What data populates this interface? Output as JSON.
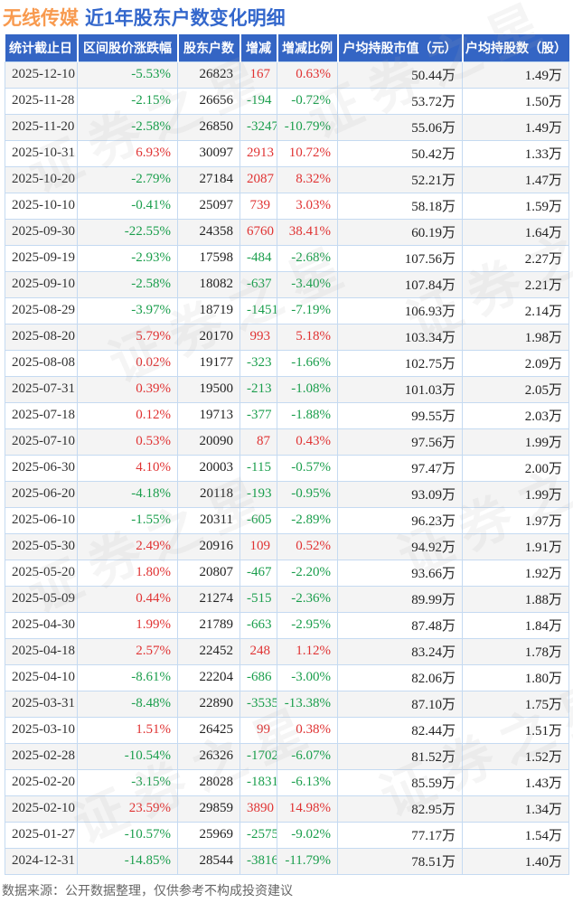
{
  "title": {
    "stock": "无线传媒",
    "text": "近1年股东户数变化明细"
  },
  "colors": {
    "header-bg": "#3465c4",
    "positive": "#e03333",
    "negative": "#1a9e4c",
    "title-stock": "#f89a4f",
    "title-rest": "#3367cc"
  },
  "watermark": {
    "text": "证券之星"
  },
  "chart_data": {
    "type": "table",
    "title": "无线传媒 近1年股东户数变化明细",
    "columns": [
      "统计截止日",
      "区间股价涨跌幅",
      "股东户数",
      "增减",
      "增减比例",
      "户均持股市值（元）",
      "户均持股数（股）"
    ],
    "column_keys": [
      "stat-date",
      "interval-price-change",
      "holder-count",
      "change",
      "change-ratio",
      "avg-holding-value",
      "avg-holding-shares"
    ],
    "rows": [
      [
        "2025-12-10",
        "-5.53%",
        "26823",
        "167",
        "0.63%",
        "50.44万",
        "1.49万"
      ],
      [
        "2025-11-28",
        "-2.15%",
        "26656",
        "-194",
        "-0.72%",
        "53.72万",
        "1.50万"
      ],
      [
        "2025-11-20",
        "-2.58%",
        "26850",
        "-3247",
        "-10.79%",
        "55.06万",
        "1.49万"
      ],
      [
        "2025-10-31",
        "6.93%",
        "30097",
        "2913",
        "10.72%",
        "50.42万",
        "1.33万"
      ],
      [
        "2025-10-20",
        "-2.79%",
        "27184",
        "2087",
        "8.32%",
        "52.21万",
        "1.47万"
      ],
      [
        "2025-10-10",
        "-0.41%",
        "25097",
        "739",
        "3.03%",
        "58.18万",
        "1.59万"
      ],
      [
        "2025-09-30",
        "-22.55%",
        "24358",
        "6760",
        "38.41%",
        "60.19万",
        "1.64万"
      ],
      [
        "2025-09-19",
        "-2.93%",
        "17598",
        "-484",
        "-2.68%",
        "107.56万",
        "2.27万"
      ],
      [
        "2025-09-10",
        "-2.58%",
        "18082",
        "-637",
        "-3.40%",
        "107.84万",
        "2.21万"
      ],
      [
        "2025-08-29",
        "-3.97%",
        "18719",
        "-1451",
        "-7.19%",
        "106.93万",
        "2.14万"
      ],
      [
        "2025-08-20",
        "5.79%",
        "20170",
        "993",
        "5.18%",
        "103.34万",
        "1.98万"
      ],
      [
        "2025-08-08",
        "0.02%",
        "19177",
        "-323",
        "-1.66%",
        "102.75万",
        "2.09万"
      ],
      [
        "2025-07-31",
        "0.39%",
        "19500",
        "-213",
        "-1.08%",
        "101.03万",
        "2.05万"
      ],
      [
        "2025-07-18",
        "0.12%",
        "19713",
        "-377",
        "-1.88%",
        "99.55万",
        "2.03万"
      ],
      [
        "2025-07-10",
        "0.53%",
        "20090",
        "87",
        "0.43%",
        "97.56万",
        "1.99万"
      ],
      [
        "2025-06-30",
        "4.10%",
        "20003",
        "-115",
        "-0.57%",
        "97.47万",
        "2.00万"
      ],
      [
        "2025-06-20",
        "-4.18%",
        "20118",
        "-193",
        "-0.95%",
        "93.09万",
        "1.99万"
      ],
      [
        "2025-06-10",
        "-1.55%",
        "20311",
        "-605",
        "-2.89%",
        "96.23万",
        "1.97万"
      ],
      [
        "2025-05-30",
        "2.49%",
        "20916",
        "109",
        "0.52%",
        "94.92万",
        "1.91万"
      ],
      [
        "2025-05-20",
        "1.80%",
        "20807",
        "-467",
        "-2.20%",
        "93.66万",
        "1.92万"
      ],
      [
        "2025-05-09",
        "0.44%",
        "21274",
        "-515",
        "-2.36%",
        "89.99万",
        "1.88万"
      ],
      [
        "2025-04-30",
        "1.99%",
        "21789",
        "-663",
        "-2.95%",
        "87.48万",
        "1.84万"
      ],
      [
        "2025-04-18",
        "2.57%",
        "22452",
        "248",
        "1.12%",
        "83.24万",
        "1.78万"
      ],
      [
        "2025-04-10",
        "-8.61%",
        "22204",
        "-686",
        "-3.00%",
        "82.06万",
        "1.80万"
      ],
      [
        "2025-03-31",
        "-8.48%",
        "22890",
        "-3535",
        "-13.38%",
        "87.10万",
        "1.75万"
      ],
      [
        "2025-03-10",
        "1.51%",
        "26425",
        "99",
        "0.38%",
        "82.44万",
        "1.51万"
      ],
      [
        "2025-02-28",
        "-10.54%",
        "26326",
        "-1702",
        "-6.07%",
        "81.52万",
        "1.52万"
      ],
      [
        "2025-02-20",
        "-3.15%",
        "28028",
        "-1831",
        "-6.13%",
        "85.59万",
        "1.43万"
      ],
      [
        "2025-02-10",
        "23.59%",
        "29859",
        "3890",
        "14.98%",
        "82.95万",
        "1.34万"
      ],
      [
        "2025-01-27",
        "-10.57%",
        "25969",
        "-2575",
        "-9.02%",
        "77.17万",
        "1.54万"
      ],
      [
        "2024-12-31",
        "-14.85%",
        "28544",
        "-3816",
        "-11.79%",
        "78.51万",
        "1.40万"
      ]
    ]
  },
  "footer": {
    "note": "数据来源：公开数据整理，仅供参考不构成投资建议"
  }
}
